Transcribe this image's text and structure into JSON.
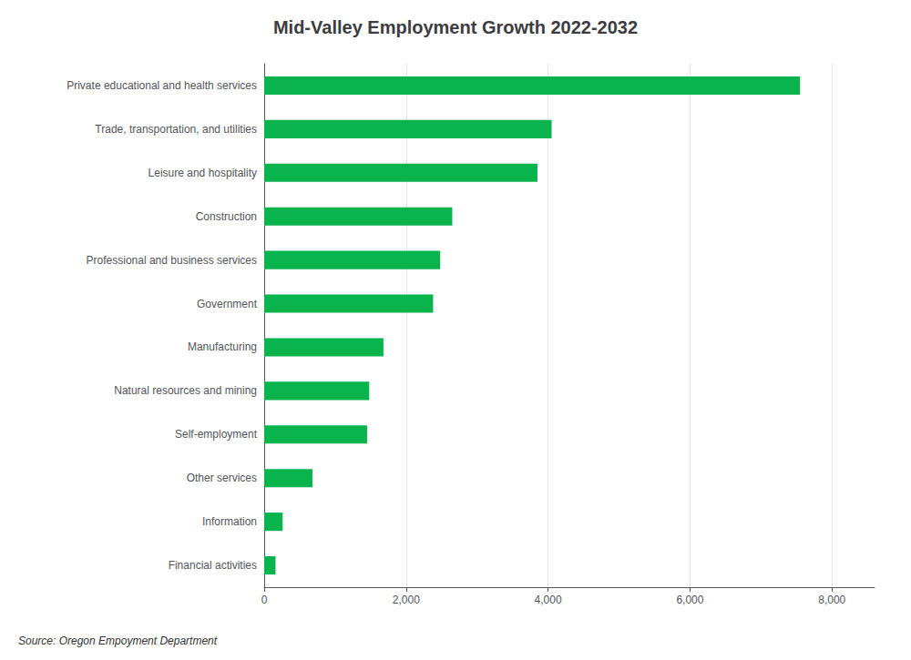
{
  "chart_data": {
    "type": "bar",
    "orientation": "horizontal",
    "title": "Mid-Valley Employment Growth 2022-2032",
    "categories": [
      "Private educational and health services",
      "Trade, transportation, and utilities",
      "Leisure and hospitality",
      "Construction",
      "Professional and business services",
      "Government",
      "Manufacturing",
      "Natural resources and mining",
      "Self-employment",
      "Other services",
      "Information",
      "Financial activities"
    ],
    "values": [
      7550,
      4050,
      3850,
      2650,
      2480,
      2380,
      1680,
      1480,
      1450,
      680,
      260,
      160
    ],
    "color": "#09b44d",
    "xlim": [
      0,
      8600
    ],
    "xticks": [
      0,
      {
        "value": 2000,
        "label": "2,000"
      },
      {
        "value": 4000,
        "label": "4,000"
      },
      {
        "value": 6000,
        "label": "6,000"
      },
      {
        "value": 8000,
        "label": "8,000"
      }
    ],
    "grid": true,
    "annotation": "Source: Oregon Empoyment Department"
  }
}
